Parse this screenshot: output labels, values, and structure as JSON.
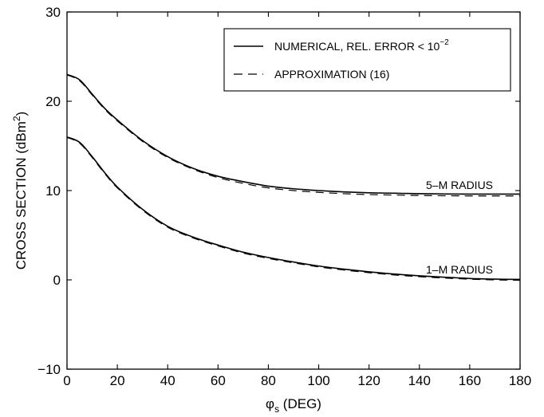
{
  "chart_data": {
    "type": "line",
    "title": "",
    "xlabel": "φs (DEG)",
    "xlabel_main": "φ",
    "xlabel_sub": "s",
    "xlabel_rest": " (DEG)",
    "ylabel": "CROSS SECTION (dBm²)",
    "ylabel_main": "CROSS SECTION (dBm",
    "ylabel_sup": "2",
    "ylabel_end": ")",
    "xlim": [
      0,
      180
    ],
    "ylim": [
      -10,
      30
    ],
    "xticks": [
      0,
      20,
      40,
      60,
      80,
      100,
      120,
      140,
      160,
      180
    ],
    "yticks": [
      -10,
      0,
      10,
      20,
      30
    ],
    "xtick_labels": [
      "0",
      "20",
      "40",
      "60",
      "80",
      "100",
      "120",
      "140",
      "160",
      "180"
    ],
    "ytick_labels": [
      "−10",
      "0",
      "10",
      "20",
      "30"
    ],
    "grid": false,
    "legend_position": "top-right",
    "legend": [
      {
        "label_main": "NUMERICAL, REL. ERROR < 10",
        "label_sup": "−2",
        "style": "solid"
      },
      {
        "label_main": "APPROXIMATION (16)",
        "label_sup": "",
        "style": "dashed"
      }
    ],
    "annotations": [
      {
        "text": "5–M RADIUS",
        "x": 162,
        "y": 10.4
      },
      {
        "text": "1–M RADIUS",
        "x": 162,
        "y": 0.7
      }
    ],
    "series": [
      {
        "style": "solid",
        "x": [
          0,
          5,
          10,
          15,
          20,
          30,
          40,
          50,
          60,
          70,
          80,
          90,
          100,
          110,
          120,
          130,
          140,
          150,
          160,
          170,
          180
        ],
        "y": [
          23.0,
          22.4,
          20.8,
          19.2,
          17.9,
          15.6,
          13.8,
          12.5,
          11.6,
          11.0,
          10.5,
          10.2,
          10.0,
          9.85,
          9.75,
          9.7,
          9.65,
          9.62,
          9.6,
          9.6,
          9.6
        ]
      },
      {
        "style": "dashed",
        "x": [
          0,
          5,
          10,
          15,
          20,
          30,
          40,
          50,
          60,
          70,
          80,
          90,
          100,
          110,
          120,
          130,
          140,
          150,
          160,
          170,
          180
        ],
        "y": [
          22.95,
          22.3,
          20.7,
          19.1,
          17.8,
          15.5,
          13.7,
          12.4,
          11.45,
          10.8,
          10.3,
          10.0,
          9.8,
          9.65,
          9.55,
          9.5,
          9.45,
          9.42,
          9.4,
          9.4,
          9.4
        ]
      },
      {
        "style": "solid",
        "x": [
          0,
          5,
          10,
          15,
          20,
          30,
          40,
          50,
          60,
          70,
          80,
          90,
          100,
          110,
          120,
          130,
          140,
          150,
          160,
          170,
          180
        ],
        "y": [
          16.0,
          15.4,
          13.8,
          12.0,
          10.4,
          7.9,
          6.0,
          4.8,
          3.9,
          3.1,
          2.5,
          2.0,
          1.55,
          1.2,
          0.9,
          0.65,
          0.45,
          0.3,
          0.15,
          0.08,
          0.05
        ]
      },
      {
        "style": "dashed",
        "x": [
          0,
          5,
          10,
          15,
          20,
          30,
          40,
          50,
          60,
          70,
          80,
          90,
          100,
          110,
          120,
          130,
          140,
          150,
          160,
          170,
          180
        ],
        "y": [
          15.95,
          15.3,
          13.7,
          11.9,
          10.3,
          7.8,
          5.9,
          4.7,
          3.8,
          3.0,
          2.4,
          1.9,
          1.45,
          1.1,
          0.8,
          0.55,
          0.35,
          0.2,
          0.08,
          0.0,
          -0.05
        ]
      }
    ]
  }
}
